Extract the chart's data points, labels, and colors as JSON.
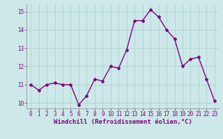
{
  "x": [
    0,
    1,
    2,
    3,
    4,
    5,
    6,
    7,
    8,
    9,
    10,
    11,
    12,
    13,
    14,
    15,
    16,
    17,
    18,
    19,
    20,
    21,
    22,
    23
  ],
  "y": [
    11.0,
    10.7,
    11.0,
    11.1,
    11.0,
    11.0,
    9.9,
    10.4,
    11.3,
    11.2,
    12.0,
    11.9,
    12.9,
    14.5,
    14.5,
    15.1,
    14.7,
    14.0,
    13.5,
    12.0,
    12.4,
    12.5,
    11.3,
    10.1
  ],
  "line_color": "#800080",
  "marker": "D",
  "marker_size": 2,
  "bg_color": "#cce8e8",
  "grid_color": "#aacece",
  "xlabel": "Windchill (Refroidissement éolien,°C)",
  "ylim": [
    9.7,
    15.4
  ],
  "xlim": [
    -0.5,
    23.5
  ],
  "yticks": [
    10,
    11,
    12,
    13,
    14,
    15
  ],
  "xticks": [
    0,
    1,
    2,
    3,
    4,
    5,
    6,
    7,
    8,
    9,
    10,
    11,
    12,
    13,
    14,
    15,
    16,
    17,
    18,
    19,
    20,
    21,
    22,
    23
  ],
  "tick_fontsize": 5.5,
  "xlabel_fontsize": 6.5,
  "line_width": 1.0,
  "tick_color": "#800080",
  "label_color": "#800080"
}
